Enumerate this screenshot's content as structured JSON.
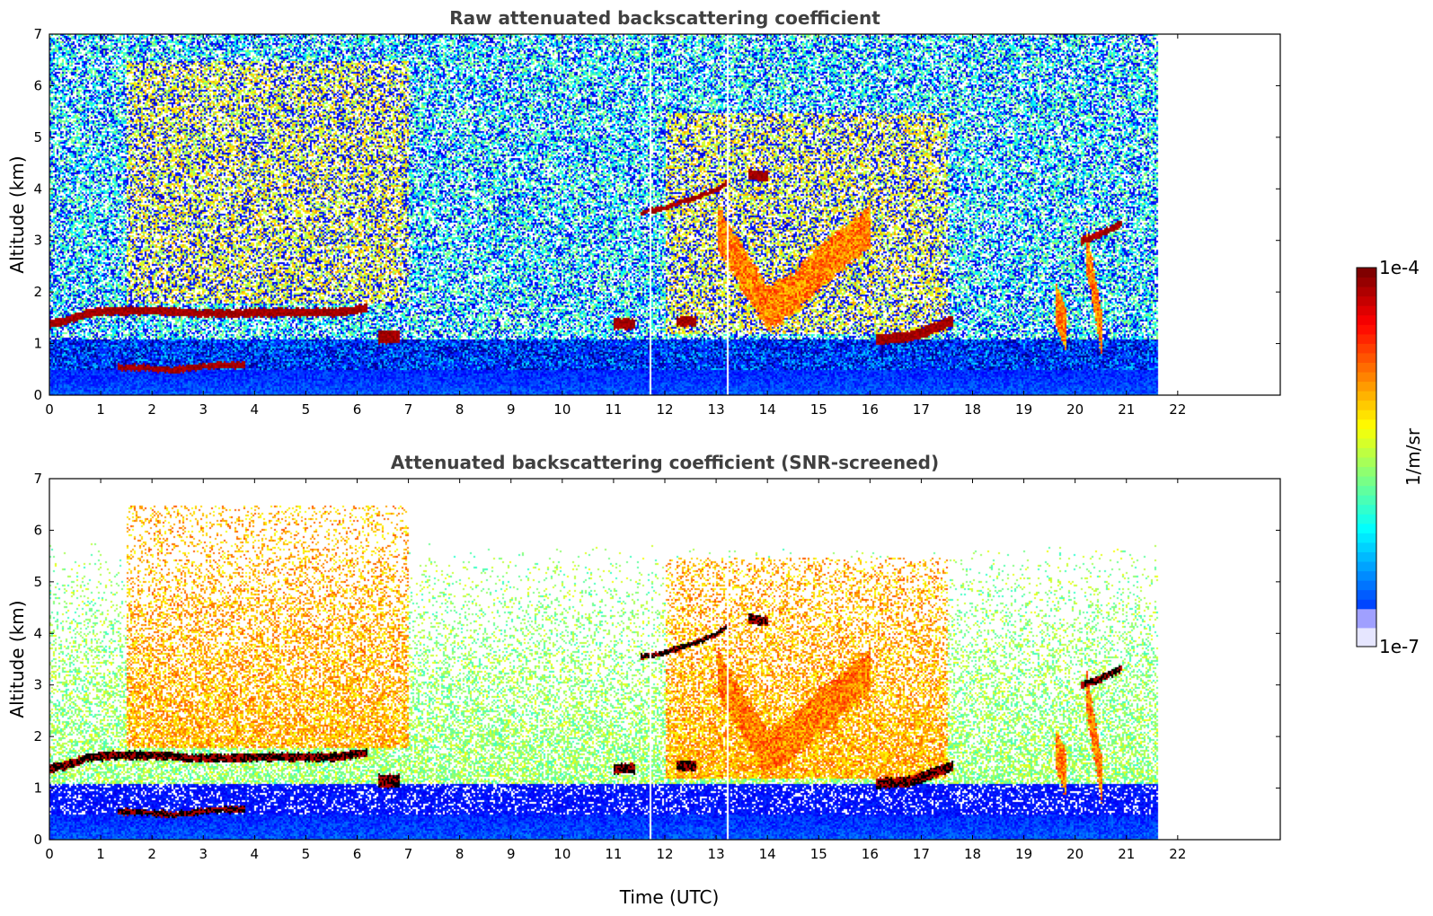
{
  "chart_data": [
    {
      "type": "heatmap",
      "title": "Raw attenuated backscattering coefficient",
      "xlabel": "",
      "ylabel": "Altitude (km)",
      "xlim": [
        0,
        24
      ],
      "ylim": [
        0,
        7
      ],
      "xticks": [
        "0",
        "1",
        "2",
        "3",
        "4",
        "5",
        "6",
        "7",
        "8",
        "9",
        "10",
        "11",
        "12",
        "13",
        "14",
        "15",
        "16",
        "17",
        "18",
        "19",
        "20",
        "21",
        "22"
      ],
      "yticks": [
        "0",
        "1",
        "2",
        "3",
        "4",
        "5",
        "6",
        "7"
      ],
      "data_end_time": 21.6,
      "screened": false,
      "features": [
        {
          "kind": "cloud_layer",
          "points": [
            [
              0,
              1.4
            ],
            [
              0.3,
              1.45
            ],
            [
              0.7,
              1.6
            ],
            [
              1.2,
              1.65
            ],
            [
              1.7,
              1.65
            ],
            [
              2.2,
              1.65
            ],
            [
              2.8,
              1.6
            ],
            [
              3.5,
              1.6
            ],
            [
              4.5,
              1.62
            ],
            [
              5.5,
              1.62
            ],
            [
              6.2,
              1.7
            ]
          ],
          "thickness": 0.16
        },
        {
          "kind": "cloud_layer",
          "points": [
            [
              1.3,
              0.55
            ],
            [
              1.8,
              0.55
            ],
            [
              2.4,
              0.5
            ],
            [
              2.8,
              0.55
            ],
            [
              3.3,
              0.6
            ],
            [
              3.8,
              0.6
            ]
          ],
          "thickness": 0.12
        },
        {
          "kind": "cloud_layer",
          "points": [
            [
              6.4,
              1.15
            ],
            [
              6.8,
              1.15
            ]
          ],
          "thickness": 0.25
        },
        {
          "kind": "cloud_layer",
          "points": [
            [
              11.0,
              1.4
            ],
            [
              11.4,
              1.4
            ]
          ],
          "thickness": 0.2
        },
        {
          "kind": "cloud_layer",
          "points": [
            [
              12.2,
              1.45
            ],
            [
              12.6,
              1.45
            ]
          ],
          "thickness": 0.2
        },
        {
          "kind": "cloud_layer",
          "points": [
            [
              11.5,
              3.55
            ],
            [
              12.0,
              3.65
            ],
            [
              12.6,
              3.85
            ],
            [
              13.0,
              4.0
            ],
            [
              13.2,
              4.15
            ]
          ],
          "thickness": 0.1
        },
        {
          "kind": "cloud_layer",
          "points": [
            [
              13.6,
              4.3
            ],
            [
              14.0,
              4.25
            ]
          ],
          "thickness": 0.2
        },
        {
          "kind": "cloud_layer",
          "points": [
            [
              16.1,
              1.1
            ],
            [
              16.8,
              1.15
            ],
            [
              17.2,
              1.3
            ],
            [
              17.6,
              1.45
            ]
          ],
          "thickness": 0.2
        },
        {
          "kind": "cloud_layer",
          "points": [
            [
              20.1,
              3.0
            ],
            [
              20.5,
              3.15
            ],
            [
              20.9,
              3.35
            ]
          ],
          "thickness": 0.14
        },
        {
          "kind": "aerosol_plume",
          "points": [
            [
              13.0,
              3.3
            ],
            [
              13.6,
              2.3
            ],
            [
              14.0,
              1.7
            ],
            [
              14.5,
              2.0
            ],
            [
              15.0,
              2.5
            ],
            [
              15.5,
              2.9
            ],
            [
              16.0,
              3.3
            ]
          ],
          "width": 0.5
        },
        {
          "kind": "aerosol_plume",
          "points": [
            [
              19.6,
              1.8
            ],
            [
              19.8,
              1.3
            ]
          ],
          "width": 0.15
        },
        {
          "kind": "aerosol_plume",
          "points": [
            [
              20.2,
              2.9
            ],
            [
              20.5,
              1.2
            ]
          ],
          "width": 0.2
        },
        {
          "kind": "haze",
          "x0": 1.5,
          "x1": 7.0,
          "y0": 1.8,
          "y1": 6.5
        },
        {
          "kind": "haze",
          "x0": 12.0,
          "x1": 17.5,
          "y0": 1.2,
          "y1": 5.5
        },
        {
          "kind": "gap_line",
          "x": 11.7
        },
        {
          "kind": "gap_line",
          "x": 13.2
        }
      ]
    },
    {
      "type": "heatmap",
      "title": "Attenuated backscattering coefficient (SNR-screened)",
      "xlabel": "Time (UTC)",
      "ylabel": "Altitude (km)",
      "xlim": [
        0,
        24
      ],
      "ylim": [
        0,
        7
      ],
      "xticks": [
        "0",
        "1",
        "2",
        "3",
        "4",
        "5",
        "6",
        "7",
        "8",
        "9",
        "10",
        "11",
        "12",
        "13",
        "14",
        "15",
        "16",
        "17",
        "18",
        "19",
        "20",
        "21",
        "22"
      ],
      "yticks": [
        "0",
        "1",
        "2",
        "3",
        "4",
        "5",
        "6",
        "7"
      ],
      "data_end_time": 21.6,
      "screened": true,
      "features": "same as raw panel, noise removed"
    }
  ],
  "colorbar": {
    "label": "1/m/sr",
    "max_label": "1e-4",
    "min_label": "1e-7",
    "colormap": "jet",
    "scale": "log"
  },
  "colors": {
    "background": "#ffffff",
    "title": "#404040"
  }
}
